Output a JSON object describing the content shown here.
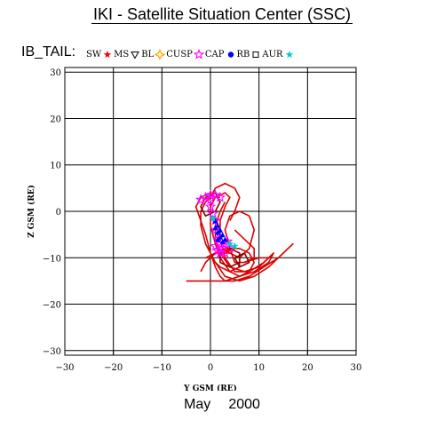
{
  "header": {
    "title": "IKI - Satellite Situation Center (SSC)"
  },
  "panel_label": "IB_TAIL:",
  "legend": [
    {
      "label": "SW",
      "symbol": "star",
      "color": "#ff0000"
    },
    {
      "label": "MS",
      "symbol": "triangle-down",
      "color": "#000000"
    },
    {
      "label": "BL",
      "symbol": "diamond-star",
      "color": "#ffaa00"
    },
    {
      "label": "CUSP",
      "symbol": "star-outline",
      "color": "#ff00ff"
    },
    {
      "label": "CAP",
      "symbol": "dot",
      "color": "#0000ff"
    },
    {
      "label": "RB",
      "symbol": "square",
      "color": "#000000"
    },
    {
      "label": "AUR",
      "symbol": "star",
      "color": "#00cccc"
    }
  ],
  "footer": {
    "month": "May",
    "year": "2000"
  },
  "chart_data": {
    "type": "line",
    "xlabel": "Y GSM (RE)",
    "ylabel": "Z GSM (RE)",
    "xlim": [
      -30,
      30
    ],
    "ylim": [
      -31,
      31
    ],
    "xticks": [
      -30,
      -20,
      -10,
      0,
      10,
      20,
      30
    ],
    "yticks": [
      -30,
      -20,
      -10,
      0,
      10,
      20,
      30
    ],
    "grid": true,
    "series": [
      {
        "color": "#dd0000",
        "points": [
          [
            1,
            3
          ],
          [
            0,
            4
          ],
          [
            -2,
            3
          ],
          [
            -3,
            1
          ],
          [
            -2,
            -2
          ],
          [
            -1,
            -5
          ],
          [
            0,
            -9
          ],
          [
            1,
            -12
          ],
          [
            2,
            -14
          ],
          [
            3,
            -15
          ],
          [
            5,
            -15
          ],
          [
            8,
            -14
          ],
          [
            11,
            -12
          ],
          [
            14,
            -10
          ],
          [
            16,
            -8
          ],
          [
            17,
            -7
          ],
          [
            15,
            -9
          ],
          [
            12,
            -12
          ],
          [
            9,
            -14
          ],
          [
            6,
            -15
          ],
          [
            3,
            -14
          ],
          [
            1,
            -11
          ],
          [
            -1,
            -7
          ],
          [
            -2,
            -3
          ],
          [
            -2,
            0
          ],
          [
            -1,
            2
          ],
          [
            0,
            3
          ]
        ]
      },
      {
        "color": "#dd0000",
        "points": [
          [
            2,
            3
          ],
          [
            1,
            3
          ],
          [
            0,
            1
          ],
          [
            0,
            -3
          ],
          [
            1,
            -7
          ],
          [
            2,
            -10
          ],
          [
            4,
            -13
          ],
          [
            6,
            -14
          ],
          [
            9,
            -13
          ],
          [
            12,
            -11
          ],
          [
            13,
            -9
          ],
          [
            11,
            -11
          ],
          [
            8,
            -13
          ],
          [
            5,
            -13
          ],
          [
            3,
            -10
          ],
          [
            2,
            -6
          ],
          [
            2,
            -2
          ],
          [
            3,
            1
          ],
          [
            4,
            3
          ],
          [
            3,
            4
          ],
          [
            1,
            3
          ]
        ]
      },
      {
        "color": "#dd0000",
        "points": [
          [
            3,
            2
          ],
          [
            2,
            0
          ],
          [
            1,
            -3
          ],
          [
            1,
            -6
          ],
          [
            2,
            -9
          ],
          [
            4,
            -12
          ],
          [
            7,
            -13
          ],
          [
            10,
            -12
          ],
          [
            12,
            -10
          ],
          [
            10,
            -10
          ],
          [
            7,
            -11
          ],
          [
            5,
            -11
          ],
          [
            4,
            -8
          ],
          [
            3,
            -4
          ],
          [
            4,
            -1
          ],
          [
            6,
            0
          ],
          [
            8,
            -1
          ],
          [
            9,
            -4
          ],
          [
            8,
            -8
          ],
          [
            6,
            -10
          ]
        ]
      },
      {
        "color": "#dd0000",
        "points": [
          [
            -2,
            -13
          ],
          [
            -1,
            -11
          ],
          [
            1,
            -9
          ],
          [
            3,
            -8
          ],
          [
            6,
            -8
          ],
          [
            8,
            -9
          ],
          [
            9,
            -11
          ],
          [
            8,
            -13
          ],
          [
            6,
            -14
          ],
          [
            3,
            -15
          ],
          [
            0,
            -15
          ],
          [
            -3,
            -15
          ],
          [
            -5,
            -15
          ]
        ]
      },
      {
        "color": "#dd0000",
        "points": [
          [
            -1,
            -10
          ],
          [
            1,
            -9
          ],
          [
            4,
            -9
          ],
          [
            6,
            -10
          ],
          [
            6,
            -12
          ],
          [
            4,
            -13
          ],
          [
            2,
            -12
          ],
          [
            1,
            -11
          ]
        ]
      },
      {
        "color": "#dd0000",
        "points": [
          [
            0,
            3
          ],
          [
            1,
            5
          ],
          [
            3,
            6
          ],
          [
            5,
            5
          ],
          [
            6,
            3
          ],
          [
            5,
            0
          ],
          [
            4,
            -2
          ]
        ]
      },
      {
        "color": "#dd0000",
        "points": [
          [
            5,
            -4
          ],
          [
            7,
            -6
          ],
          [
            9,
            -8
          ],
          [
            9,
            -10
          ],
          [
            7,
            -11
          ]
        ]
      },
      {
        "color": "#880000",
        "points": [
          [
            1,
            4
          ],
          [
            -1,
            3
          ],
          [
            -2,
            1
          ],
          [
            -1,
            -1
          ],
          [
            1,
            0
          ],
          [
            2,
            2
          ],
          [
            1,
            4
          ]
        ]
      },
      {
        "color": "#880000",
        "points": [
          [
            2,
            -9
          ],
          [
            4,
            -8
          ],
          [
            6,
            -9
          ],
          [
            6,
            -11
          ],
          [
            4,
            -12
          ],
          [
            2,
            -11
          ],
          [
            2,
            -9
          ]
        ]
      },
      {
        "color": "#880000",
        "points": [
          [
            5,
            -10
          ],
          [
            7,
            -9
          ],
          [
            8,
            -11
          ],
          [
            6,
            -12
          ],
          [
            5,
            -10
          ]
        ]
      }
    ],
    "markers": [
      {
        "type": "CUSP",
        "color": "#ff00ff",
        "points": [
          [
            -1,
            3
          ],
          [
            0,
            3.5
          ],
          [
            1,
            3.5
          ],
          [
            -2,
            2.5
          ],
          [
            0,
            2.5
          ],
          [
            2,
            3
          ],
          [
            0,
            1
          ],
          [
            0.5,
            -0.5
          ],
          [
            1,
            -2
          ],
          [
            1,
            -4
          ],
          [
            1.5,
            -6
          ],
          [
            2,
            -7
          ],
          [
            1,
            -7.5
          ],
          [
            2.5,
            -8
          ],
          [
            3,
            -7
          ],
          [
            1.5,
            -8.5
          ],
          [
            3,
            -9
          ],
          [
            2,
            -9
          ],
          [
            4,
            -8
          ],
          [
            3.5,
            -6.5
          ]
        ]
      },
      {
        "type": "CAP",
        "color": "#0000ff",
        "points": [
          [
            1,
            -2
          ],
          [
            1.5,
            -3
          ],
          [
            1,
            -3.5
          ],
          [
            2,
            -4
          ],
          [
            1.5,
            -4.5
          ],
          [
            2.5,
            -5
          ],
          [
            2,
            -5.5
          ],
          [
            3,
            -6
          ],
          [
            2.5,
            -6.5
          ],
          [
            1.5,
            -6
          ]
        ]
      },
      {
        "type": "AUR",
        "color": "#00cccc",
        "points": [
          [
            4,
            -7
          ],
          [
            5,
            -7.5
          ],
          [
            0.5,
            -1.5
          ]
        ]
      },
      {
        "type": "SW",
        "color": "#ff0000",
        "points": [
          [
            3.5,
            -8.5
          ]
        ]
      }
    ]
  }
}
